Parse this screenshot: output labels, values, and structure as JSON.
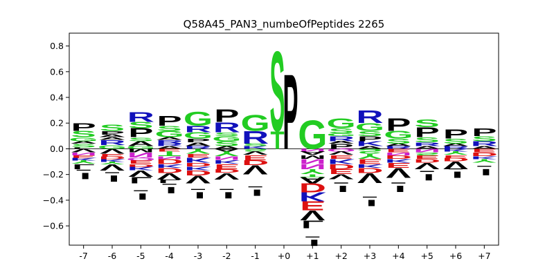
{
  "chart_data": {
    "type": "sequence-logo",
    "title": "Q58A45_PAN3_numbeOfPeptides 2265",
    "xlabel": "",
    "ylabel": "",
    "ylim": [
      -0.75,
      0.9
    ],
    "yticks": [
      -0.6,
      -0.4,
      -0.2,
      0.0,
      0.2,
      0.4,
      0.6,
      0.8
    ],
    "ytick_labels": [
      "−0.6",
      "−0.4",
      "−0.2",
      "0.0",
      "0.2",
      "0.4",
      "0.6",
      "0.8"
    ],
    "positions": [
      "-7",
      "-6",
      "-5",
      "-4",
      "-3",
      "-2",
      "-1",
      "+0",
      "+1",
      "+2",
      "+3",
      "+4",
      "+5",
      "+6",
      "+7"
    ],
    "colors": {
      "S": "#22cc22",
      "T": "#22cc22",
      "G": "#22cc22",
      "Y": "#22cc22",
      "C": "#22cc22",
      "N": "#cc22cc",
      "Q": "#cc22cc",
      "R": "#1111bb",
      "K": "#1111bb",
      "H": "#1111bb",
      "D": "#dd1111",
      "E": "#dd1111",
      "P": "#000000",
      "A": "#000000",
      "V": "#000000",
      "L": "#000000",
      "I": "#000000",
      "M": "#000000",
      "F": "#000000",
      "W": "#000000"
    },
    "stacks": [
      {
        "pos": "-7",
        "pos_letters": [
          [
            "L",
            0.01
          ],
          [
            "S",
            0.03
          ],
          [
            "A",
            0.02
          ],
          [
            "G",
            0.03
          ],
          [
            "S",
            0.05
          ],
          [
            "P",
            0.06
          ]
        ],
        "neg_letters": [
          [
            "V",
            0.03
          ],
          [
            "N",
            0.02
          ],
          [
            "E",
            0.02
          ],
          [
            "K",
            0.02
          ],
          [
            "Y",
            0.03
          ],
          [
            "L",
            0.04
          ]
        ],
        "neg_total": 0.22
      },
      {
        "pos": "-6",
        "pos_letters": [
          [
            "G",
            0.03
          ],
          [
            "R",
            0.04
          ],
          [
            "A",
            0.02
          ],
          [
            "A",
            0.02
          ],
          [
            "P",
            0.03
          ],
          [
            "S",
            0.05
          ]
        ],
        "neg_letters": [
          [
            "V",
            0.04
          ],
          [
            "E",
            0.02
          ],
          [
            "D",
            0.02
          ],
          [
            "K",
            0.02
          ],
          [
            "Y",
            0.02
          ],
          [
            "V",
            0.05
          ]
        ],
        "neg_total": 0.24
      },
      {
        "pos": "-5",
        "pos_letters": [
          [
            "G",
            0.02
          ],
          [
            "A",
            0.04
          ],
          [
            "S",
            0.03
          ],
          [
            "P",
            0.07
          ],
          [
            "S",
            0.05
          ],
          [
            "R",
            0.08
          ]
        ],
        "neg_letters": [
          [
            "M",
            0.03
          ],
          [
            "N",
            0.04
          ],
          [
            "Q",
            0.02
          ],
          [
            "E",
            0.03
          ],
          [
            "D",
            0.02
          ],
          [
            "K",
            0.03
          ],
          [
            "V",
            0.05
          ],
          [
            "L",
            0.05
          ]
        ],
        "neg_total": 0.38
      },
      {
        "pos": "-4",
        "pos_letters": [
          [
            "A",
            0.02
          ],
          [
            "R",
            0.02
          ],
          [
            "R",
            0.03
          ],
          [
            "A",
            0.02
          ],
          [
            "G",
            0.05
          ],
          [
            "S",
            0.04
          ],
          [
            "P",
            0.08
          ]
        ],
        "neg_letters": [
          [
            "E",
            0.02
          ],
          [
            "T",
            0.04
          ],
          [
            "N",
            0.02
          ],
          [
            "D",
            0.04
          ],
          [
            "K",
            0.03
          ],
          [
            "D",
            0.04
          ],
          [
            "V",
            0.05
          ],
          [
            "L",
            0.03
          ]
        ],
        "neg_total": 0.33
      },
      {
        "pos": "-3",
        "pos_letters": [
          [
            "R",
            0.02
          ],
          [
            "A",
            0.03
          ],
          [
            "P",
            0.03
          ],
          [
            "G",
            0.05
          ],
          [
            "R",
            0.05
          ],
          [
            "G",
            0.11
          ]
        ],
        "neg_letters": [
          [
            "Y",
            0.04
          ],
          [
            "E",
            0.03
          ],
          [
            "K",
            0.04
          ],
          [
            "D",
            0.03
          ],
          [
            "K",
            0.03
          ],
          [
            "D",
            0.04
          ],
          [
            "V",
            0.06
          ]
        ],
        "neg_total": 0.37
      },
      {
        "pos": "-2",
        "pos_letters": [
          [
            "A",
            0.02
          ],
          [
            "S",
            0.04
          ],
          [
            "G",
            0.04
          ],
          [
            "S",
            0.03
          ],
          [
            "R",
            0.08
          ],
          [
            "P",
            0.1
          ]
        ],
        "neg_letters": [
          [
            "A",
            0.02
          ],
          [
            "Y",
            0.04
          ],
          [
            "N",
            0.03
          ],
          [
            "K",
            0.03
          ],
          [
            "E",
            0.04
          ],
          [
            "D",
            0.03
          ],
          [
            "V",
            0.05
          ]
        ],
        "neg_total": 0.37
      },
      {
        "pos": "-1",
        "pos_letters": [
          [
            "K",
            0.02
          ],
          [
            "S",
            0.02
          ],
          [
            "R",
            0.1
          ],
          [
            "G",
            0.13
          ]
        ],
        "neg_letters": [
          [
            "S",
            0.02
          ],
          [
            "V",
            0.03
          ],
          [
            "E",
            0.04
          ],
          [
            "D",
            0.04
          ],
          [
            "V",
            0.07
          ]
        ],
        "neg_total": 0.35
      },
      {
        "pos": "+0",
        "pos_letters": [
          [
            "T",
            0.14
          ],
          [
            "S",
            0.64
          ]
        ],
        "neg_letters": [],
        "neg_total": 0.0
      },
      {
        "pos": "+1",
        "pos_letters": [
          [
            "T",
            0.02
          ],
          [
            "G",
            0.02
          ]
        ],
        "neg_letters": [],
        "neg_total": 0.0
      },
      {
        "pos": "+2",
        "pos_letters": [
          [
            "P",
            0.04
          ],
          [
            "A",
            0.02
          ],
          [
            "R",
            0.04
          ],
          [
            "G",
            0.02
          ],
          [
            "S",
            0.04
          ],
          [
            "G",
            0.08
          ]
        ],
        "neg_letters": [
          [
            "Q",
            0.02
          ],
          [
            "V",
            0.03
          ],
          [
            "E",
            0.03
          ],
          [
            "K",
            0.04
          ],
          [
            "D",
            0.04
          ],
          [
            "E",
            0.04
          ],
          [
            "V",
            0.04
          ]
        ],
        "neg_total": 0.32
      },
      {
        "pos": "+3",
        "pos_letters": [
          [
            "A",
            0.02
          ],
          [
            "K",
            0.04
          ],
          [
            "P",
            0.04
          ],
          [
            "S",
            0.04
          ],
          [
            "G",
            0.06
          ],
          [
            "R",
            0.1
          ]
        ],
        "neg_letters": [
          [
            "S",
            0.04
          ],
          [
            "Y",
            0.04
          ],
          [
            "E",
            0.04
          ],
          [
            "K",
            0.03
          ],
          [
            "D",
            0.04
          ],
          [
            "V",
            0.08
          ]
        ],
        "neg_total": 0.43
      },
      {
        "pos": "+4",
        "pos_letters": [
          [
            "R",
            0.02
          ],
          [
            "A",
            0.02
          ],
          [
            "S",
            0.04
          ],
          [
            "G",
            0.06
          ],
          [
            "P",
            0.1
          ]
        ],
        "neg_letters": [
          [
            "E",
            0.03
          ],
          [
            "N",
            0.02
          ],
          [
            "D",
            0.03
          ],
          [
            "K",
            0.03
          ],
          [
            "E",
            0.04
          ],
          [
            "V",
            0.08
          ]
        ],
        "neg_total": 0.32
      },
      {
        "pos": "+5",
        "pos_letters": [
          [
            "A",
            0.02
          ],
          [
            "R",
            0.03
          ],
          [
            "S",
            0.04
          ],
          [
            "P",
            0.08
          ],
          [
            "S",
            0.06
          ]
        ],
        "neg_letters": [
          [
            "N",
            0.03
          ],
          [
            "S",
            0.02
          ],
          [
            "E",
            0.03
          ],
          [
            "D",
            0.03
          ],
          [
            "V",
            0.05
          ]
        ],
        "neg_total": 0.23
      },
      {
        "pos": "+6",
        "pos_letters": [
          [
            "R",
            0.02
          ],
          [
            "A",
            0.02
          ],
          [
            "S",
            0.04
          ],
          [
            "P",
            0.07
          ]
        ],
        "neg_letters": [
          [
            "K",
            0.02
          ],
          [
            "Y",
            0.03
          ],
          [
            "E",
            0.02
          ],
          [
            "D",
            0.03
          ],
          [
            "V",
            0.06
          ]
        ],
        "neg_total": 0.21
      },
      {
        "pos": "+7",
        "pos_letters": [
          [
            "A",
            0.02
          ],
          [
            "R",
            0.04
          ],
          [
            "S",
            0.04
          ],
          [
            "P",
            0.06
          ]
        ],
        "neg_letters": [
          [
            "E",
            0.03
          ],
          [
            "D",
            0.03
          ],
          [
            "K",
            0.02
          ],
          [
            "Y",
            0.03
          ]
        ],
        "neg_total": 0.19
      }
    ],
    "special_stacks": {
      "+0": {
        "pos_letters": [
          [
            "T",
            0.14
          ],
          [
            "S",
            0.64
          ]
        ],
        "pos_second": [
          [
            "P",
            0.6
          ]
        ]
      },
      "+1": {
        "pos_letters": [
          [
            "G",
            0.23
          ]
        ],
        "neg_letters": [
          [
            "N",
            0.02
          ],
          [
            "A",
            0.03
          ],
          [
            "M",
            0.03
          ],
          [
            "N",
            0.04
          ],
          [
            "N",
            0.04
          ],
          [
            "Y",
            0.04
          ],
          [
            "T",
            0.02
          ],
          [
            "A",
            0.05
          ],
          [
            "D",
            0.07
          ],
          [
            "K",
            0.07
          ],
          [
            "E",
            0.07
          ],
          [
            "V",
            0.08
          ],
          [
            "L",
            0.06
          ]
        ],
        "neg_total": 0.74
      }
    }
  }
}
